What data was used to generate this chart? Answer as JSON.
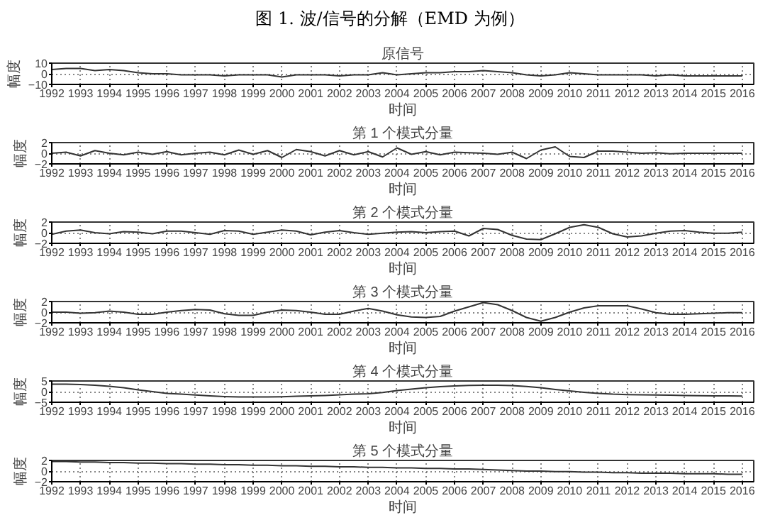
{
  "chart_data": [
    {
      "type": "line",
      "title": "原信号",
      "xlabel": "时间",
      "ylabel": "幅度",
      "annotations": [
        "图 1. 波/信号的分解（EMD 为例）"
      ],
      "color": "#333333",
      "grid": true,
      "xlim": [
        1992,
        2016.4
      ],
      "xticks": [
        1992,
        1993,
        1994,
        1995,
        1996,
        1997,
        1998,
        1999,
        2000,
        2001,
        2002,
        2003,
        2004,
        2005,
        2006,
        2007,
        2008,
        2009,
        2010,
        2011,
        2012,
        2013,
        2014,
        2015,
        2016
      ],
      "ylim": [
        -10,
        10
      ],
      "yticks": [
        -10,
        0,
        10
      ],
      "x": [
        1992,
        1992.5,
        1993,
        1993.5,
        1994,
        1994.5,
        1995,
        1995.5,
        1996,
        1996.5,
        1997,
        1997.5,
        1998,
        1998.5,
        1999,
        1999.5,
        2000,
        2000.5,
        2001,
        2001.5,
        2002,
        2002.5,
        2003,
        2003.5,
        2004,
        2004.5,
        2005,
        2005.5,
        2006,
        2006.5,
        2007,
        2007.5,
        2008,
        2008.5,
        2009,
        2009.5,
        2010,
        2010.5,
        2011,
        2011.5,
        2012,
        2012.5,
        2013,
        2013.5,
        2014,
        2014.5,
        2015,
        2015.5,
        2016
      ],
      "values": [
        4,
        5,
        5,
        3,
        4,
        3,
        1,
        0,
        0,
        -1,
        -1,
        -1,
        -2,
        -1,
        -1,
        -1,
        -3,
        -1,
        -1,
        -1,
        -2,
        -1,
        -1,
        1,
        -1,
        0,
        1,
        1,
        2,
        2,
        3,
        2,
        1,
        -1,
        -2,
        -1,
        1,
        0,
        -1,
        -1,
        -1,
        -1,
        -2,
        -1,
        -2,
        -2,
        -2,
        -2,
        -2
      ]
    },
    {
      "type": "line",
      "title": "第 1 个模式分量",
      "xlabel": "时间",
      "ylabel": "幅度",
      "color": "#333333",
      "grid": true,
      "xlim": [
        1992,
        2016.4
      ],
      "xticks": [
        1992,
        1993,
        1994,
        1995,
        1996,
        1997,
        1998,
        1999,
        2000,
        2001,
        2002,
        2003,
        2004,
        2005,
        2006,
        2007,
        2008,
        2009,
        2010,
        2011,
        2012,
        2013,
        2014,
        2015,
        2016
      ],
      "ylim": [
        -2,
        2
      ],
      "yticks": [
        -2,
        0,
        2
      ],
      "x": [
        1992,
        1992.5,
        1993,
        1993.5,
        1994,
        1994.5,
        1995,
        1995.5,
        1996,
        1996.5,
        1997,
        1997.5,
        1998,
        1998.5,
        1999,
        1999.5,
        2000,
        2000.5,
        2001,
        2001.5,
        2002,
        2002.5,
        2003,
        2003.5,
        2004,
        2004.5,
        2005,
        2005.5,
        2006,
        2006.5,
        2007,
        2007.5,
        2008,
        2008.5,
        2009,
        2009.5,
        2010,
        2010.5,
        2011,
        2011.5,
        2012,
        2012.5,
        2013,
        2013.5,
        2014,
        2014.5,
        2015,
        2015.5,
        2016
      ],
      "values": [
        0,
        0.2,
        -0.5,
        0.5,
        0,
        -0.3,
        0.2,
        -0.2,
        0.3,
        -0.3,
        0,
        0.2,
        -0.3,
        0.6,
        -0.2,
        0.5,
        -0.8,
        0.7,
        0.3,
        -0.5,
        0.5,
        -0.3,
        0.3,
        -0.7,
        1.0,
        -0.2,
        0.3,
        -0.3,
        0.2,
        0.1,
        0,
        -0.2,
        0.2,
        -1.0,
        0.6,
        1.2,
        -0.6,
        -0.8,
        0.4,
        0.4,
        0.2,
        0,
        0.1,
        -0.1,
        0,
        0,
        0,
        0,
        0
      ]
    },
    {
      "type": "line",
      "title": "第 2 个模式分量",
      "xlabel": "时间",
      "ylabel": "幅度",
      "color": "#333333",
      "grid": true,
      "xlim": [
        1992,
        2016.4
      ],
      "xticks": [
        1992,
        1993,
        1994,
        1995,
        1996,
        1997,
        1998,
        1999,
        2000,
        2001,
        2002,
        2003,
        2004,
        2005,
        2006,
        2007,
        2008,
        2009,
        2010,
        2011,
        2012,
        2013,
        2014,
        2015,
        2016
      ],
      "ylim": [
        -2,
        2
      ],
      "yticks": [
        -2,
        0,
        2
      ],
      "x": [
        1992,
        1992.5,
        1993,
        1993.5,
        1994,
        1994.5,
        1995,
        1995.5,
        1996,
        1996.5,
        1997,
        1997.5,
        1998,
        1998.5,
        1999,
        1999.5,
        2000,
        2000.5,
        2001,
        2001.5,
        2002,
        2002.5,
        2003,
        2003.5,
        2004,
        2004.5,
        2005,
        2005.5,
        2006,
        2006.5,
        2007,
        2007.5,
        2008,
        2008.5,
        2009,
        2009.5,
        2010,
        2010.5,
        2011,
        2011.5,
        2012,
        2012.5,
        2013,
        2013.5,
        2014,
        2014.5,
        2015,
        2015.5,
        2016
      ],
      "values": [
        -0.3,
        0.3,
        0.5,
        0,
        -0.2,
        0.2,
        0.1,
        -0.2,
        0.3,
        0.3,
        0,
        -0.3,
        0.4,
        0.3,
        -0.3,
        0.1,
        0.5,
        0.3,
        -0.4,
        0.1,
        0.4,
        0,
        -0.3,
        -0.1,
        0.1,
        0.2,
        0,
        0.2,
        0.3,
        -0.6,
        0.8,
        0.6,
        -0.5,
        -1.2,
        -1.3,
        -0.2,
        1.0,
        1.5,
        1.0,
        -0.2,
        -0.8,
        -0.6,
        -0.1,
        0.3,
        0.4,
        0.1,
        -0.1,
        -0.1,
        0.1
      ]
    },
    {
      "type": "line",
      "title": "第 3 个模式分量",
      "xlabel": "时间",
      "ylabel": "幅度",
      "color": "#333333",
      "grid": true,
      "xlim": [
        1992,
        2016.4
      ],
      "xticks": [
        1992,
        1993,
        1994,
        1995,
        1996,
        1997,
        1998,
        1999,
        2000,
        2001,
        2002,
        2003,
        2004,
        2005,
        2006,
        2007,
        2008,
        2009,
        2010,
        2011,
        2012,
        2013,
        2014,
        2015,
        2016
      ],
      "ylim": [
        -2,
        2
      ],
      "yticks": [
        -2,
        0,
        2
      ],
      "x": [
        1992,
        1992.5,
        1993,
        1993.5,
        1994,
        1994.5,
        1995,
        1995.5,
        1996,
        1996.5,
        1997,
        1997.5,
        1998,
        1998.5,
        1999,
        1999.5,
        2000,
        2000.5,
        2001,
        2001.5,
        2002,
        2002.5,
        2003,
        2003.5,
        2004,
        2004.5,
        2005,
        2005.5,
        2006,
        2006.5,
        2007,
        2007.5,
        2008,
        2008.5,
        2009,
        2009.5,
        2010,
        2010.5,
        2011,
        2011.5,
        2012,
        2012.5,
        2013,
        2013.5,
        2014,
        2014.5,
        2015,
        2015.5,
        2016
      ],
      "values": [
        0,
        0,
        -0.2,
        -0.1,
        0.2,
        0,
        -0.4,
        -0.4,
        0,
        0.3,
        0.5,
        0.4,
        -0.3,
        -0.6,
        -0.6,
        0,
        0.4,
        0.3,
        0,
        -0.4,
        -0.4,
        0.2,
        0.7,
        0.2,
        -0.5,
        -0.9,
        -1.0,
        -0.8,
        0.2,
        1.0,
        1.8,
        1.4,
        0.3,
        -1.0,
        -1.7,
        -1.0,
        0,
        0.8,
        1.2,
        1.2,
        1.2,
        0.6,
        -0.1,
        -0.4,
        -0.4,
        -0.3,
        -0.2,
        -0.1,
        -0.1
      ]
    },
    {
      "type": "line",
      "title": "第 4 个模式分量",
      "xlabel": "时间",
      "ylabel": "幅度",
      "color": "#333333",
      "grid": true,
      "xlim": [
        1992,
        2016.4
      ],
      "xticks": [
        1992,
        1993,
        1994,
        1995,
        1996,
        1997,
        1998,
        1999,
        2000,
        2001,
        2002,
        2003,
        2004,
        2005,
        2006,
        2007,
        2008,
        2009,
        2010,
        2011,
        2012,
        2013,
        2014,
        2015,
        2016
      ],
      "ylim": [
        -5,
        5
      ],
      "yticks": [
        -5,
        0,
        5
      ],
      "x": [
        1992,
        1992.5,
        1993,
        1993.5,
        1994,
        1994.5,
        1995,
        1995.5,
        1996,
        1996.5,
        1997,
        1997.5,
        1998,
        1998.5,
        1999,
        1999.5,
        2000,
        2000.5,
        2001,
        2001.5,
        2002,
        2002.5,
        2003,
        2003.5,
        2004,
        2004.5,
        2005,
        2005.5,
        2006,
        2006.5,
        2007,
        2007.5,
        2008,
        2008.5,
        2009,
        2009.5,
        2010,
        2010.5,
        2011,
        2011.5,
        2012,
        2012.5,
        2013,
        2013.5,
        2014,
        2014.5,
        2015,
        2015.5,
        2016
      ],
      "values": [
        3.5,
        3.5,
        3.3,
        3,
        2.5,
        1.8,
        0.8,
        0,
        -0.8,
        -1.2,
        -1.6,
        -2,
        -2.3,
        -2.5,
        -2.5,
        -2.5,
        -2.4,
        -2.2,
        -2,
        -1.8,
        -1.5,
        -1.2,
        -1,
        -0.4,
        0.5,
        1.2,
        1.8,
        2.3,
        2.7,
        2.9,
        3,
        3,
        2.8,
        2.4,
        1.8,
        1,
        0.3,
        -0.3,
        -0.8,
        -1.2,
        -1.4,
        -1.5,
        -1.6,
        -1.7,
        -1.8,
        -1.9,
        -2,
        -2,
        -2.1
      ]
    },
    {
      "type": "line",
      "title": "第 5 个模式分量",
      "xlabel": "时间",
      "ylabel": "幅度",
      "color": "#333333",
      "grid": true,
      "xlim": [
        1992,
        2016.4
      ],
      "xticks": [
        1992,
        1993,
        1994,
        1995,
        1996,
        1997,
        1998,
        1999,
        2000,
        2001,
        2002,
        2003,
        2004,
        2005,
        2006,
        2007,
        2008,
        2009,
        2010,
        2011,
        2012,
        2013,
        2014,
        2015,
        2016
      ],
      "ylim": [
        -2,
        2
      ],
      "yticks": [
        -2,
        0,
        2
      ],
      "x": [
        1992,
        1992.5,
        1993,
        1993.5,
        1994,
        1994.5,
        1995,
        1995.5,
        1996,
        1996.5,
        1997,
        1997.5,
        1998,
        1998.5,
        1999,
        1999.5,
        2000,
        2000.5,
        2001,
        2001.5,
        2002,
        2002.5,
        2003,
        2003.5,
        2004,
        2004.5,
        2005,
        2005.5,
        2006,
        2006.5,
        2007,
        2007.5,
        2008,
        2008.5,
        2009,
        2009.5,
        2010,
        2010.5,
        2011,
        2011.5,
        2012,
        2012.5,
        2013,
        2013.5,
        2014,
        2014.5,
        2015,
        2015.5,
        2016
      ],
      "values": [
        1.8,
        1.8,
        1.7,
        1.7,
        1.6,
        1.6,
        1.5,
        1.5,
        1.4,
        1.4,
        1.3,
        1.3,
        1.2,
        1.2,
        1.1,
        1.1,
        1.0,
        1.0,
        0.9,
        0.9,
        0.8,
        0.8,
        0.7,
        0.7,
        0.6,
        0.6,
        0.5,
        0.5,
        0.4,
        0.4,
        0.3,
        0.2,
        0.1,
        0,
        0,
        -0.1,
        -0.1,
        -0.2,
        -0.2,
        -0.3,
        -0.3,
        -0.4,
        -0.4,
        -0.4,
        -0.5,
        -0.5,
        -0.5,
        -0.6,
        -0.6
      ]
    }
  ]
}
